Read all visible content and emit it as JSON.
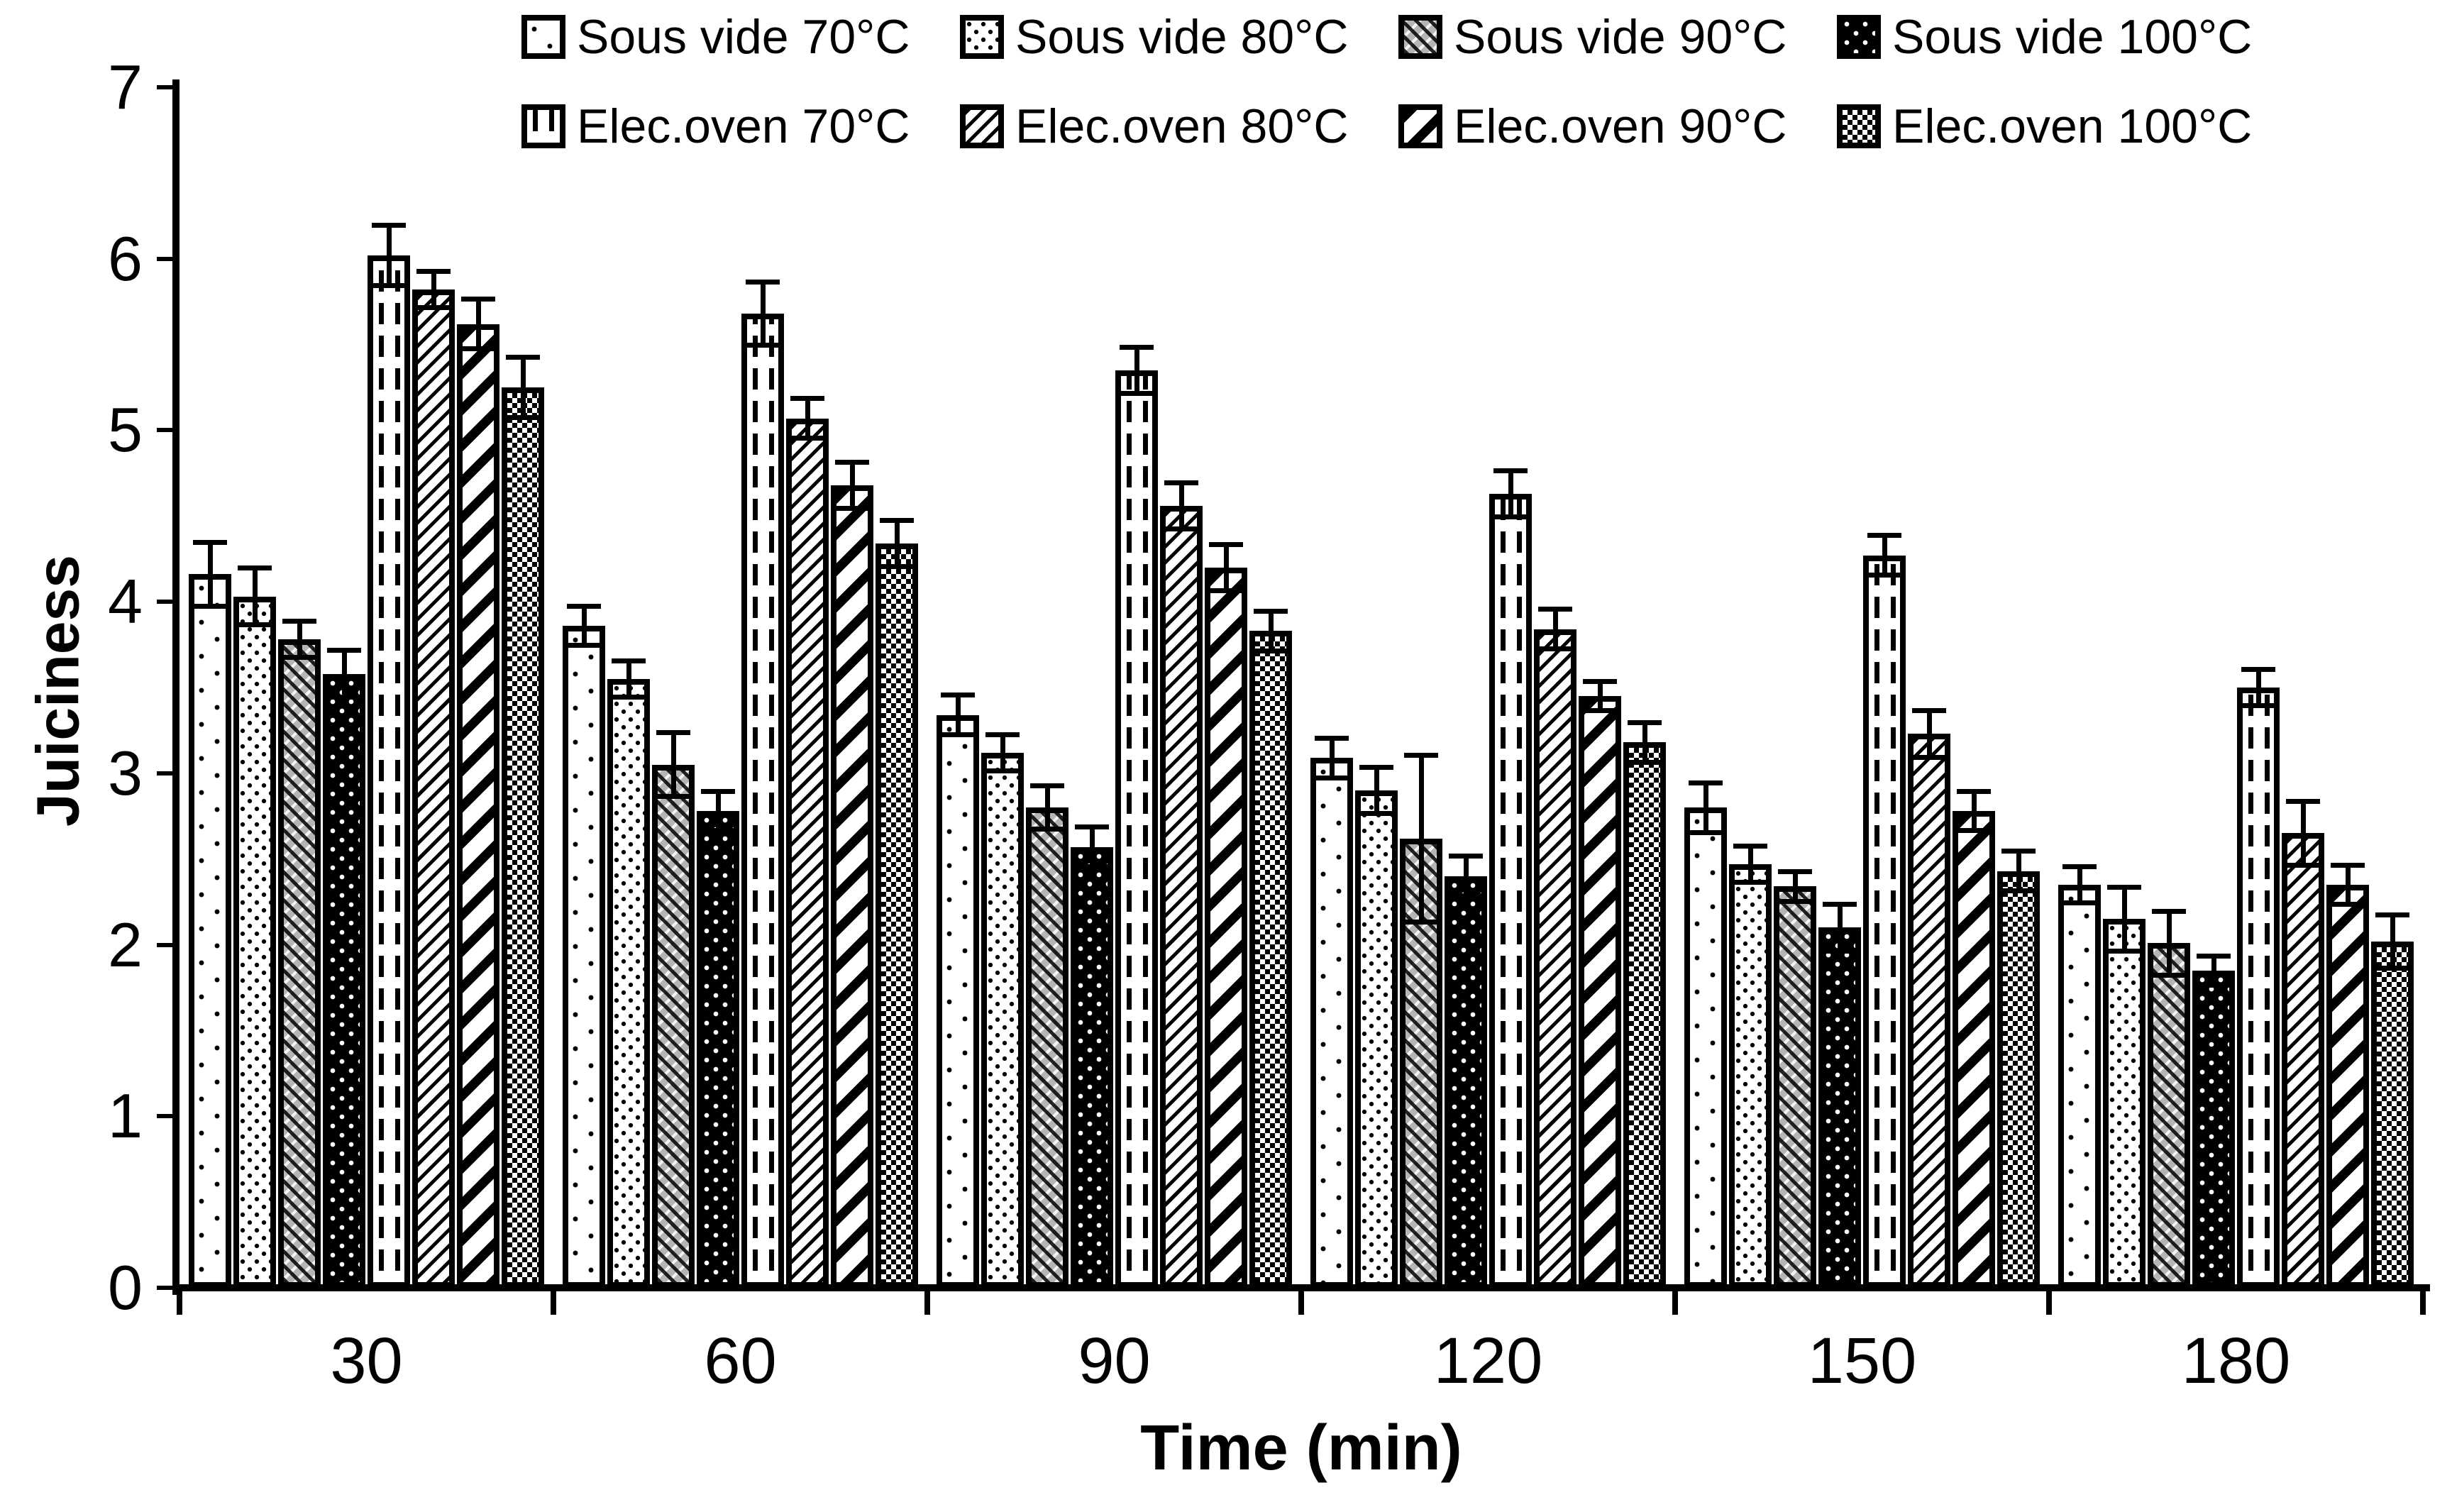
{
  "axis": {
    "y_title": "Juiciness",
    "x_title": "Time (min)",
    "y_tick_labels": [
      "0",
      "1",
      "2",
      "3",
      "4",
      "5",
      "6",
      "7"
    ],
    "x_tick_labels": [
      "30",
      "60",
      "90",
      "120",
      "150",
      "180"
    ]
  },
  "legend": {
    "row1": [
      "Sous vide 70°C",
      "Sous vide 80°C",
      "Sous vide 90°C",
      "Sous vide 100°C"
    ],
    "row2": [
      "Elec.oven 70°C",
      "Elec.oven 80°C",
      "Elec.oven 90°C",
      "Elec.oven 100°C"
    ]
  },
  "colors": {
    "foreground": "#000000",
    "background": "#ffffff",
    "pattern_gray": "#b5b5b5"
  },
  "chart_data": {
    "type": "bar",
    "title": "",
    "xlabel": "Time (min)",
    "ylabel": "Juiciness",
    "ylim": [
      0,
      7
    ],
    "yticks": [
      0,
      1,
      2,
      3,
      4,
      5,
      6,
      7
    ],
    "grid": false,
    "legend_position": "top",
    "error_bars": true,
    "categories": [
      "30",
      "60",
      "90",
      "120",
      "150",
      "180"
    ],
    "series": [
      {
        "name": "Sous vide 70°C",
        "pattern": "dots-sparse",
        "values": [
          4.16,
          3.86,
          3.34,
          3.09,
          2.8,
          2.35
        ],
        "errors": [
          0.2,
          0.13,
          0.13,
          0.13,
          0.16,
          0.12
        ]
      },
      {
        "name": "Sous vide 80°C",
        "pattern": "dots-rows",
        "values": [
          4.03,
          3.55,
          3.12,
          2.9,
          2.47,
          2.15
        ],
        "errors": [
          0.18,
          0.12,
          0.12,
          0.15,
          0.12,
          0.2
        ]
      },
      {
        "name": "Sous vide 90°C",
        "pattern": "gray-crosshatch",
        "values": [
          3.78,
          3.05,
          2.8,
          2.62,
          2.34,
          2.01
        ],
        "errors": [
          0.12,
          0.2,
          0.14,
          0.5,
          0.1,
          0.2
        ]
      },
      {
        "name": "Sous vide 100°C",
        "pattern": "black-dots",
        "values": [
          3.58,
          2.78,
          2.57,
          2.4,
          2.1,
          1.85
        ],
        "errors": [
          0.15,
          0.13,
          0.13,
          0.13,
          0.15,
          0.1
        ]
      },
      {
        "name": "Elec.oven 70°C",
        "pattern": "dashed-vertical",
        "values": [
          6.02,
          5.68,
          5.35,
          4.63,
          4.27,
          3.5
        ],
        "errors": [
          0.19,
          0.2,
          0.15,
          0.15,
          0.13,
          0.12
        ]
      },
      {
        "name": "Elec.oven 80°C",
        "pattern": "diagonal-thin",
        "values": [
          5.82,
          5.07,
          4.56,
          3.84,
          3.23,
          2.65
        ],
        "errors": [
          0.12,
          0.13,
          0.15,
          0.13,
          0.15,
          0.2
        ]
      },
      {
        "name": "Elec.oven 90°C",
        "pattern": "diagonal-bold",
        "values": [
          5.62,
          4.68,
          4.2,
          3.45,
          2.78,
          2.35
        ],
        "errors": [
          0.16,
          0.15,
          0.15,
          0.1,
          0.13,
          0.13
        ]
      },
      {
        "name": "Elec.oven 100°C",
        "pattern": "checkerboard",
        "values": [
          5.25,
          4.34,
          3.83,
          3.18,
          2.43,
          2.02
        ],
        "errors": [
          0.19,
          0.15,
          0.13,
          0.13,
          0.13,
          0.17
        ]
      }
    ]
  }
}
